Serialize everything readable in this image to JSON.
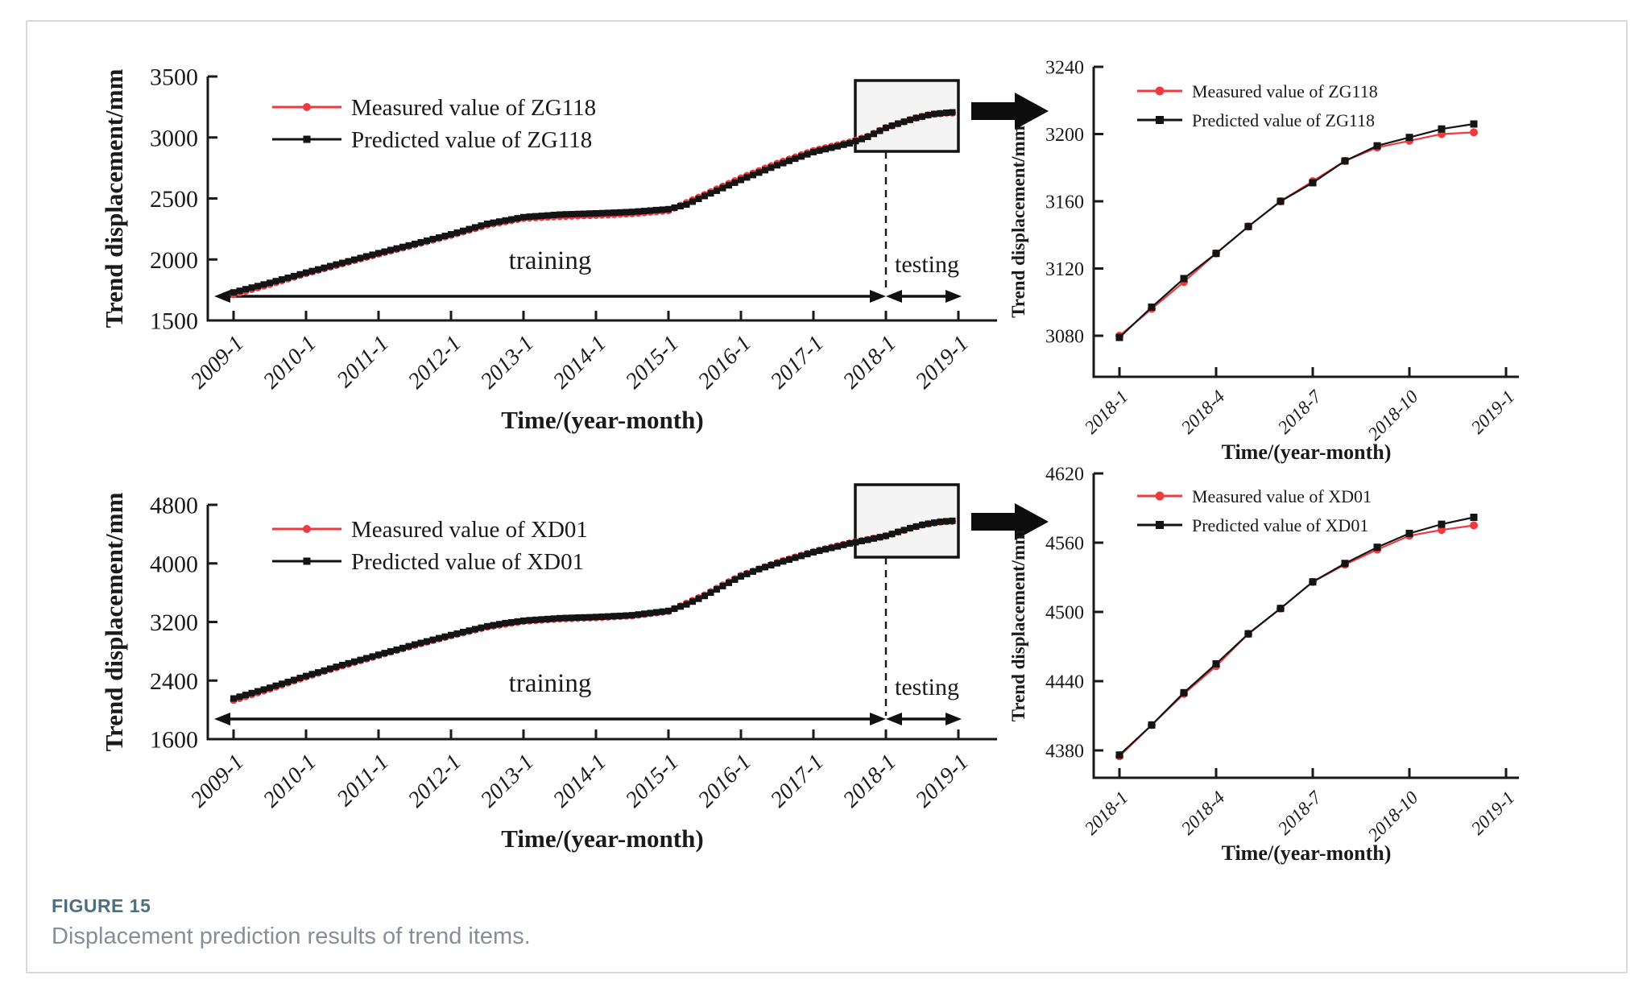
{
  "figure": {
    "label": "FIGURE 15",
    "caption": "Displacement prediction results of trend items.",
    "label_color": "#4d6f80",
    "caption_color": "#878e98"
  },
  "colors": {
    "measured": "#ee3a41",
    "predicted": "#141414",
    "box_fill": "#f4f4f4"
  },
  "chart_data": [
    {
      "id": "zg118-full",
      "type": "line",
      "xlabel": "Time/(year-month)",
      "ylabel": "Trend displacement/mm",
      "x_tick_labels": [
        "2009-1",
        "2010-1",
        "2011-1",
        "2012-1",
        "2013-1",
        "2014-1",
        "2015-1",
        "2016-1",
        "2017-1",
        "2018-1",
        "2019-1"
      ],
      "y_ticks": [
        1500,
        2000,
        2500,
        3000,
        3500
      ],
      "ylim": [
        1500,
        3500
      ],
      "x_range_years": [
        2009,
        2019
      ],
      "legend_position": "upper left",
      "grid": false,
      "annotations": {
        "training_label": "training",
        "testing_label": "testing",
        "split_at": "2018-1"
      },
      "legend": [
        "Measured value of ZG118",
        "Predicted value of ZG118"
      ],
      "series": [
        {
          "name": "Measured value of ZG118",
          "color": "#ee3a41",
          "marker": "circle",
          "points": [
            [
              2009.0,
              1712
            ],
            [
              2009.5,
              1796
            ],
            [
              2010.0,
              1885
            ],
            [
              2010.5,
              1965
            ],
            [
              2011.0,
              2045
            ],
            [
              2011.5,
              2120
            ],
            [
              2012.0,
              2198
            ],
            [
              2012.5,
              2282
            ],
            [
              2013.0,
              2337
            ],
            [
              2013.5,
              2352
            ],
            [
              2014.0,
              2362
            ],
            [
              2014.5,
              2375
            ],
            [
              2015.0,
              2400
            ],
            [
              2015.5,
              2532
            ],
            [
              2015.75,
              2600
            ],
            [
              2016.0,
              2668
            ],
            [
              2016.5,
              2788
            ],
            [
              2017.0,
              2892
            ],
            [
              2017.5,
              2962
            ],
            [
              2017.75,
              3010
            ],
            [
              2018.0,
              3080
            ],
            [
              2018.0833,
              3096
            ],
            [
              2018.1667,
              3112
            ],
            [
              2018.25,
              3129
            ],
            [
              2018.3333,
              3145
            ],
            [
              2018.4167,
              3160
            ],
            [
              2018.5,
              3172
            ],
            [
              2018.5833,
              3184
            ],
            [
              2018.6667,
              3192
            ],
            [
              2018.75,
              3196
            ],
            [
              2018.8333,
              3200
            ],
            [
              2018.9167,
              3201
            ]
          ]
        },
        {
          "name": "Predicted value of ZG118",
          "color": "#141414",
          "marker": "square",
          "points": [
            [
              2009.0,
              1730
            ],
            [
              2009.5,
              1808
            ],
            [
              2010.0,
              1892
            ],
            [
              2010.5,
              1972
            ],
            [
              2011.0,
              2052
            ],
            [
              2011.5,
              2128
            ],
            [
              2012.0,
              2206
            ],
            [
              2012.5,
              2292
            ],
            [
              2013.0,
              2347
            ],
            [
              2013.5,
              2368
            ],
            [
              2014.0,
              2378
            ],
            [
              2014.5,
              2390
            ],
            [
              2015.0,
              2412
            ],
            [
              2015.25,
              2450
            ],
            [
              2015.5,
              2520
            ],
            [
              2015.75,
              2585
            ],
            [
              2016.0,
              2652
            ],
            [
              2016.5,
              2772
            ],
            [
              2017.0,
              2880
            ],
            [
              2017.5,
              2952
            ],
            [
              2017.75,
              3005
            ],
            [
              2018.0,
              3079
            ],
            [
              2018.0833,
              3097
            ],
            [
              2018.1667,
              3114
            ],
            [
              2018.25,
              3129
            ],
            [
              2018.3333,
              3145
            ],
            [
              2018.4167,
              3160
            ],
            [
              2018.5,
              3171
            ],
            [
              2018.5833,
              3184
            ],
            [
              2018.6667,
              3193
            ],
            [
              2018.75,
              3198
            ],
            [
              2018.8333,
              3203
            ],
            [
              2018.9167,
              3206
            ]
          ]
        }
      ]
    },
    {
      "id": "zg118-zoom",
      "type": "line",
      "xlabel": "Time/(year-month)",
      "ylabel": "Trend displacement/mm",
      "x_tick_labels": [
        "2018-1",
        "2018-4",
        "2018-7",
        "2018-10",
        "2019-1"
      ],
      "x_months": [
        "2018-1",
        "2018-2",
        "2018-3",
        "2018-4",
        "2018-5",
        "2018-6",
        "2018-7",
        "2018-8",
        "2018-9",
        "2018-10",
        "2018-11",
        "2018-12"
      ],
      "y_ticks": [
        3080,
        3120,
        3160,
        3200,
        3240
      ],
      "ylim": [
        3056,
        3240
      ],
      "legend_position": "upper left",
      "grid": false,
      "legend": [
        "Measured value of ZG118",
        "Predicted value of ZG118"
      ],
      "series": [
        {
          "name": "Measured value of ZG118",
          "color": "#ee3a41",
          "marker": "circle",
          "values": [
            3080,
            3096,
            3112,
            3129,
            3145,
            3160,
            3172,
            3184,
            3192,
            3196,
            3200,
            3201
          ]
        },
        {
          "name": "Predicted value of ZG118",
          "color": "#141414",
          "marker": "square",
          "values": [
            3079,
            3097,
            3114,
            3129,
            3145,
            3160,
            3171,
            3184,
            3193,
            3198,
            3203,
            3206
          ]
        }
      ]
    },
    {
      "id": "xd01-full",
      "type": "line",
      "xlabel": "Time/(year-month)",
      "ylabel": "Trend displacement/mm",
      "x_tick_labels": [
        "2009-1",
        "2010-1",
        "2011-1",
        "2012-1",
        "2013-1",
        "2014-1",
        "2015-1",
        "2016-1",
        "2017-1",
        "2018-1",
        "2019-1"
      ],
      "y_ticks": [
        1600,
        2400,
        3200,
        4000,
        4800
      ],
      "ylim": [
        1600,
        4800
      ],
      "x_range_years": [
        2009,
        2019
      ],
      "legend_position": "upper left",
      "grid": false,
      "annotations": {
        "training_label": "training",
        "testing_label": "testing",
        "split_at": "2018-1"
      },
      "legend": [
        "Measured value of XD01",
        "Predicted value of XD01"
      ],
      "series": [
        {
          "name": "Measured value of XD01",
          "color": "#ee3a41",
          "marker": "circle",
          "points": [
            [
              2009.0,
              2130
            ],
            [
              2009.5,
              2285
            ],
            [
              2010.0,
              2450
            ],
            [
              2010.5,
              2602
            ],
            [
              2011.0,
              2742
            ],
            [
              2011.5,
              2882
            ],
            [
              2012.0,
              3012
            ],
            [
              2012.5,
              3132
            ],
            [
              2013.0,
              3208
            ],
            [
              2013.5,
              3242
            ],
            [
              2014.0,
              3258
            ],
            [
              2014.5,
              3285
            ],
            [
              2015.0,
              3345
            ],
            [
              2015.5,
              3568
            ],
            [
              2015.75,
              3705
            ],
            [
              2016.0,
              3835
            ],
            [
              2016.5,
              4012
            ],
            [
              2017.0,
              4160
            ],
            [
              2017.5,
              4278
            ],
            [
              2018.0,
              4375
            ],
            [
              2018.0833,
              4402
            ],
            [
              2018.1667,
              4429
            ],
            [
              2018.25,
              4453
            ],
            [
              2018.3333,
              4481
            ],
            [
              2018.4167,
              4503
            ],
            [
              2018.5,
              4526
            ],
            [
              2018.5833,
              4541
            ],
            [
              2018.6667,
              4554
            ],
            [
              2018.75,
              4566
            ],
            [
              2018.8333,
              4571
            ],
            [
              2018.9167,
              4575
            ]
          ]
        },
        {
          "name": "Predicted value of XD01",
          "color": "#141414",
          "marker": "square",
          "points": [
            [
              2009.0,
              2155
            ],
            [
              2009.5,
              2302
            ],
            [
              2010.0,
              2462
            ],
            [
              2010.5,
              2612
            ],
            [
              2011.0,
              2752
            ],
            [
              2011.5,
              2892
            ],
            [
              2012.0,
              3022
            ],
            [
              2012.5,
              3142
            ],
            [
              2012.75,
              3185
            ],
            [
              2013.0,
              3218
            ],
            [
              2013.5,
              3252
            ],
            [
              2014.0,
              3268
            ],
            [
              2014.5,
              3292
            ],
            [
              2015.0,
              3352
            ],
            [
              2015.25,
              3440
            ],
            [
              2015.5,
              3555
            ],
            [
              2015.75,
              3690
            ],
            [
              2016.0,
              3822
            ],
            [
              2016.25,
              3922
            ],
            [
              2016.5,
              4002
            ],
            [
              2017.0,
              4152
            ],
            [
              2017.5,
              4272
            ],
            [
              2017.75,
              4322
            ],
            [
              2018.0,
              4376
            ],
            [
              2018.0833,
              4402
            ],
            [
              2018.1667,
              4430
            ],
            [
              2018.25,
              4455
            ],
            [
              2018.3333,
              4481
            ],
            [
              2018.4167,
              4503
            ],
            [
              2018.5,
              4526
            ],
            [
              2018.5833,
              4542
            ],
            [
              2018.6667,
              4556
            ],
            [
              2018.75,
              4568
            ],
            [
              2018.8333,
              4576
            ],
            [
              2018.9167,
              4582
            ]
          ]
        }
      ]
    },
    {
      "id": "xd01-zoom",
      "type": "line",
      "xlabel": "Time/(year-month)",
      "ylabel": "Trend displacement/mm",
      "x_tick_labels": [
        "2018-1",
        "2018-4",
        "2018-7",
        "2018-10",
        "2019-1"
      ],
      "x_months": [
        "2018-1",
        "2018-2",
        "2018-3",
        "2018-4",
        "2018-5",
        "2018-6",
        "2018-7",
        "2018-8",
        "2018-9",
        "2018-10",
        "2018-11",
        "2018-12"
      ],
      "y_ticks": [
        4380,
        4440,
        4500,
        4560,
        4620
      ],
      "ylim": [
        4356,
        4620
      ],
      "legend_position": "upper left",
      "grid": false,
      "legend": [
        "Measured value of XD01",
        "Predicted value of XD01"
      ],
      "series": [
        {
          "name": "Measured value of XD01",
          "color": "#ee3a41",
          "marker": "circle",
          "values": [
            4375,
            4402,
            4429,
            4453,
            4481,
            4503,
            4526,
            4541,
            4554,
            4566,
            4571,
            4575
          ]
        },
        {
          "name": "Predicted value of XD01",
          "color": "#141414",
          "marker": "square",
          "values": [
            4376,
            4402,
            4430,
            4455,
            4481,
            4503,
            4526,
            4542,
            4556,
            4568,
            4576,
            4582
          ]
        }
      ]
    }
  ]
}
